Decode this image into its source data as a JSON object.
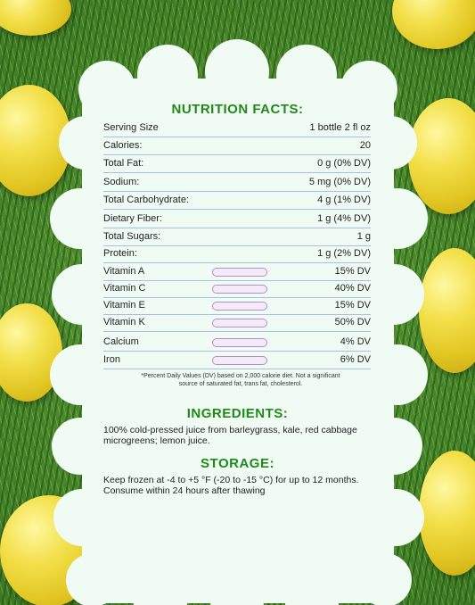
{
  "titles": {
    "nutrition": "NUTRITION FACTS:",
    "ingredients": "INGREDIENTS:",
    "storage": "STORAGE:"
  },
  "facts": [
    {
      "label": "Serving Size",
      "value": "1 bottle 2 fl oz"
    },
    {
      "label": "Calories:",
      "value": "20"
    },
    {
      "label": "Total Fat:",
      "value": "0 g (0% DV)"
    },
    {
      "label": "Sodium:",
      "value": "5 mg (0% DV)"
    },
    {
      "label": "Total Carbohydrate:",
      "value": "4 g (1% DV)"
    },
    {
      "label": "Dietary Fiber:",
      "value": "1 g (4% DV)"
    },
    {
      "label": "Total Sugars:",
      "value": "1 g"
    },
    {
      "label": "Protein:",
      "value": "1 g (2% DV)"
    }
  ],
  "vitamins": [
    {
      "label": "Vitamin A",
      "value": "15% DV",
      "level": 15
    },
    {
      "label": "Vitamin C",
      "value": "40% DV",
      "level": 40
    },
    {
      "label": "Vitamin E",
      "value": "15% DV",
      "level": 15
    },
    {
      "label": "Vitamin K",
      "value": "50% DV",
      "level": 50
    },
    {
      "label": "Calcium",
      "value": "4% DV",
      "level": 4
    },
    {
      "label": "Iron",
      "value": "6% DV",
      "level": 6
    }
  ],
  "footnote": "*Percent Daily Values (DV) based on 2,000 calorie diet. Not a significant source of saturated fat, trans fat, cholesterol.",
  "ingredients_text": "100% cold-pressed juice from barleygrass, kale, red cabbage microgreens; lemon juice.",
  "storage_text": "Keep frozen at -4 to +5 °F (-20 to -15 °C) for up to 12 months. Consume within 24 hours after thawing",
  "colors": {
    "title": "#1f8a1a",
    "bar_fill": "#c27fd6",
    "panel": "#f0fbf4"
  }
}
